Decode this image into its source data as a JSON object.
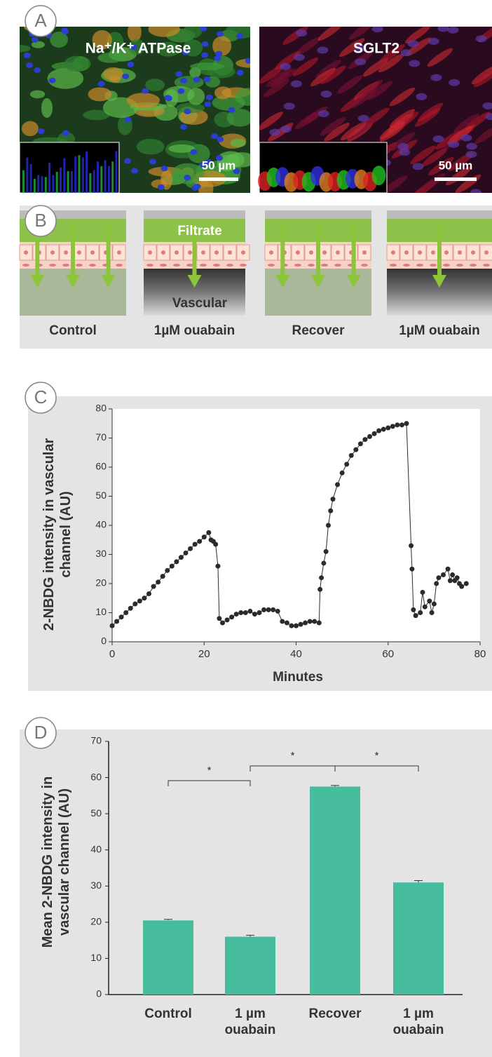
{
  "panel_a": {
    "label": "A",
    "images": [
      {
        "title": "Na⁺/K⁺ ATPase",
        "scale_bar": "50 µm"
      },
      {
        "title": "SGLT2",
        "scale_bar": "50 µm"
      }
    ]
  },
  "panel_b": {
    "label": "B",
    "filtrate": "Filtrate",
    "vascular": "Vascular",
    "conditions": [
      "Control",
      "1µM ouabain",
      "Recover",
      "1µM ouabain"
    ]
  },
  "chart_data": [
    {
      "type": "scatter",
      "label": "C",
      "x_label": "Minutes",
      "y_label": "2-NBDG intensity in vascular channel (AU)",
      "color": "#2b2b2b",
      "line": true,
      "x": [
        0,
        1,
        2,
        3,
        4,
        5,
        6,
        7,
        8,
        9,
        10,
        11,
        12,
        13,
        14,
        15,
        16,
        17,
        18,
        19,
        20,
        21,
        21.5,
        22,
        22.5,
        23,
        23.3,
        24,
        25,
        26,
        27,
        28,
        29,
        30,
        31,
        32,
        33,
        34,
        35,
        36,
        37,
        38,
        39,
        40,
        41,
        42,
        43,
        44,
        45,
        45.2,
        45.5,
        46,
        46.5,
        47,
        47.5,
        48,
        49,
        50,
        51,
        52,
        53,
        54,
        55,
        56,
        57,
        58,
        59,
        60,
        61,
        62,
        63,
        64,
        65,
        65.2,
        65.5,
        66,
        67,
        67.5,
        68,
        69,
        69.5,
        70,
        70.5,
        71,
        72,
        73,
        73.5,
        74,
        74.5,
        75,
        75.5,
        76,
        77
      ],
      "y": [
        5.5,
        7,
        8.5,
        10,
        11.5,
        13,
        14,
        15,
        16.5,
        19,
        20.5,
        22.5,
        24.5,
        26,
        27.5,
        29,
        30.5,
        32,
        33.5,
        34.5,
        36,
        37.5,
        35,
        34.5,
        33.5,
        26,
        8,
        6.5,
        7.5,
        8.5,
        9.5,
        10,
        10,
        10.5,
        9.5,
        10,
        11,
        11,
        11,
        10.5,
        7,
        6.5,
        5.5,
        5.5,
        6,
        6.5,
        7,
        7,
        6.5,
        18,
        22,
        27,
        31,
        40,
        45,
        49,
        54,
        58,
        61,
        64,
        66,
        68,
        69.5,
        70.5,
        71.5,
        72.5,
        73,
        73.5,
        74,
        74.5,
        74.5,
        75,
        33,
        25,
        11,
        9,
        10,
        17,
        12,
        14,
        10,
        13,
        20,
        22,
        23,
        25,
        21,
        23,
        21,
        22,
        20,
        19,
        20
      ],
      "xlim": [
        0,
        80
      ],
      "ylim": [
        0,
        80
      ],
      "xticks": [
        0,
        20,
        40,
        60,
        80
      ],
      "yticks": [
        0,
        10,
        20,
        30,
        40,
        50,
        60,
        70,
        80
      ]
    },
    {
      "type": "bar",
      "label": "D",
      "y_label": "Mean 2-NBDG intensity in vascular channel (AU)",
      "color": "#47bd9d",
      "categories": [
        "Control",
        "1 µm ouabain",
        "Recover",
        "1 µm ouabain"
      ],
      "values": [
        20.5,
        16,
        57.5,
        31
      ],
      "errors": [
        0.3,
        0.4,
        0.3,
        0.5
      ],
      "significance": [
        "*",
        "*",
        "*"
      ],
      "ylim": [
        0,
        70
      ],
      "yticks": [
        0,
        10,
        20,
        30,
        40,
        50,
        60,
        70
      ]
    }
  ]
}
